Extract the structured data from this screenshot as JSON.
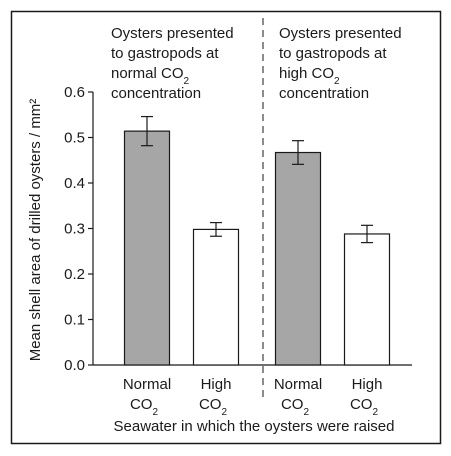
{
  "chart_data": {
    "type": "bar",
    "xlabel": "Seawater in which the oysters were raised",
    "ylabel": "Mean shell area of drilled oysters / mm²",
    "ylim": [
      0,
      0.6
    ],
    "yticks": [
      "0.0",
      "0.1",
      "0.2",
      "0.3",
      "0.4",
      "0.5",
      "0.6"
    ],
    "grid": false,
    "panels": [
      {
        "title_lines": [
          {
            "text": "Oysters presented"
          },
          {
            "text": "to gastropods at"
          },
          {
            "text": "normal CO",
            "sub": "2"
          },
          {
            "text": "concentration"
          }
        ],
        "bars": [
          {
            "label": "Normal",
            "label2": "CO",
            "label2_sub": "2",
            "value": 0.514,
            "error": 0.032,
            "fill": "#a6a6a6"
          },
          {
            "label": "High",
            "label2": "CO",
            "label2_sub": "2",
            "value": 0.298,
            "error": 0.015,
            "fill": "#ffffff"
          }
        ]
      },
      {
        "title_lines": [
          {
            "text": "Oysters presented"
          },
          {
            "text": "to gastropods at"
          },
          {
            "text": "high CO",
            "sub": "2"
          },
          {
            "text": "concentration"
          }
        ],
        "bars": [
          {
            "label": "Normal",
            "label2": "CO",
            "label2_sub": "2",
            "value": 0.467,
            "error": 0.026,
            "fill": "#a6a6a6"
          },
          {
            "label": "High",
            "label2": "CO",
            "label2_sub": "2",
            "value": 0.288,
            "error": 0.019,
            "fill": "#ffffff"
          }
        ]
      }
    ]
  }
}
